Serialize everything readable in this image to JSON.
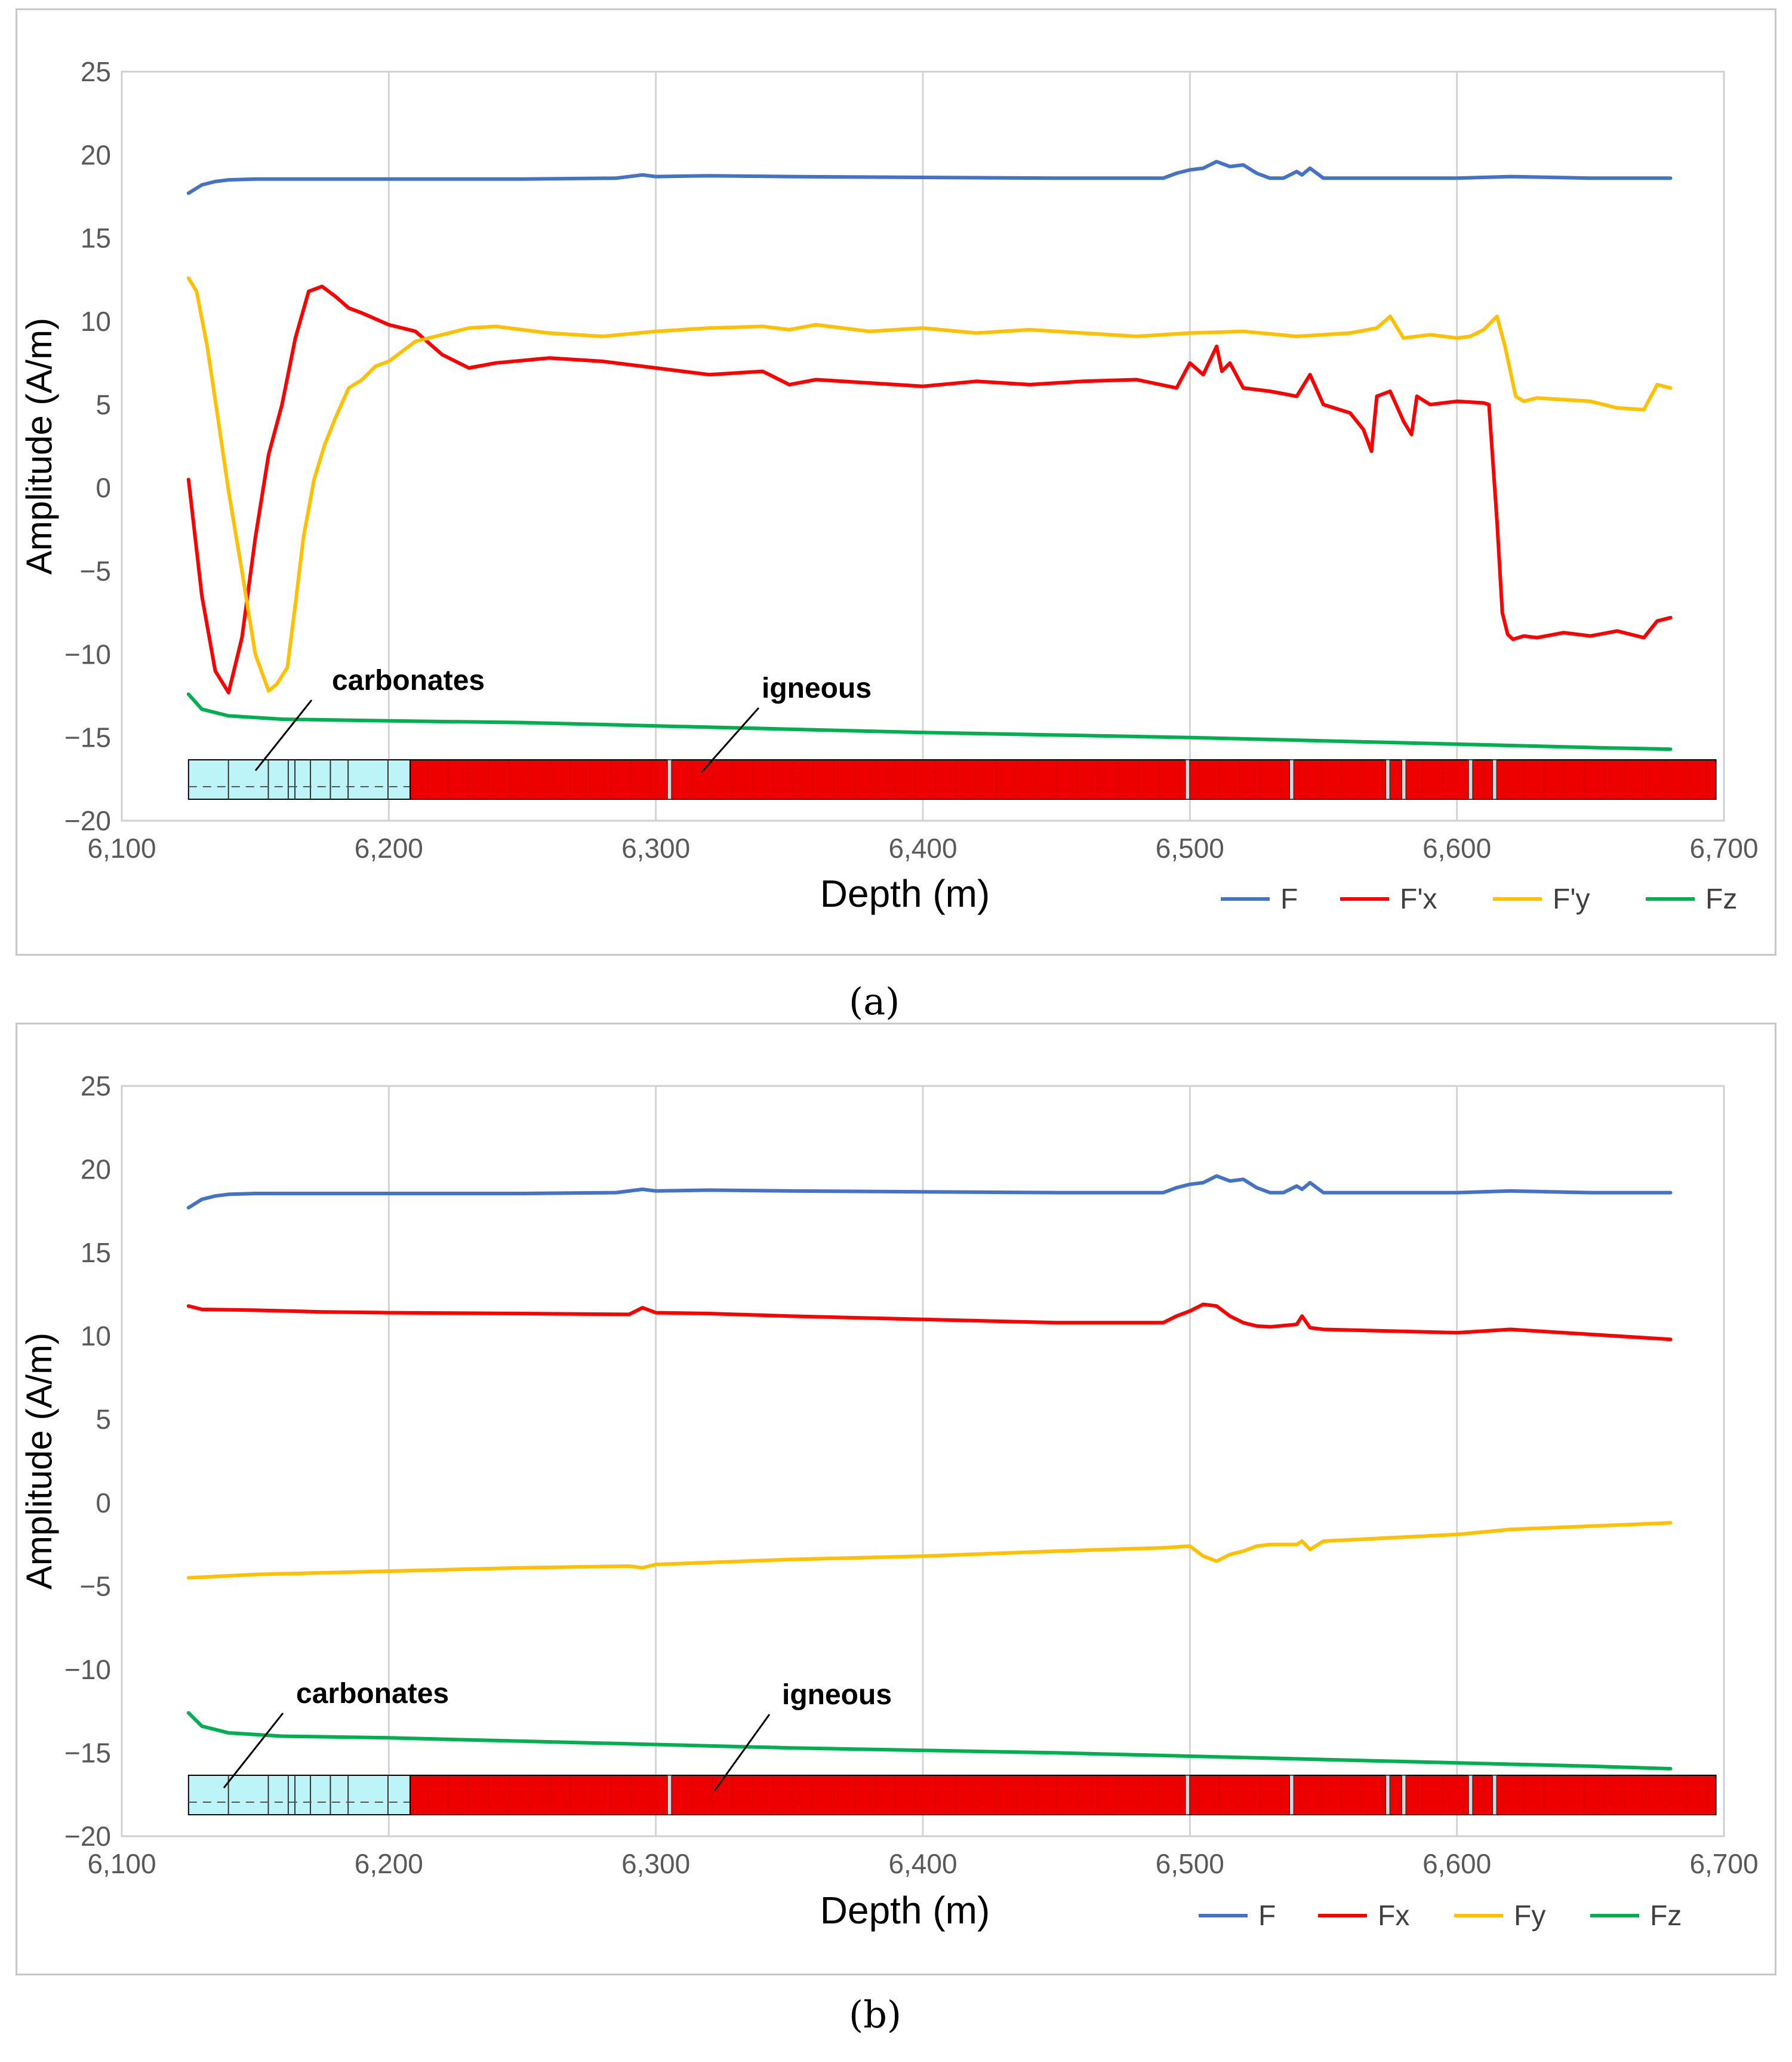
{
  "chart_data": [
    {
      "type": "line",
      "panel_label": "(a)",
      "title": "",
      "xlabel": "Depth (m)",
      "ylabel": "Amplitude (A/m)",
      "xlim": [
        6100,
        6700
      ],
      "ylim": [
        -20,
        25
      ],
      "x_ticks": [
        6100,
        6200,
        6300,
        6400,
        6500,
        6600,
        6700
      ],
      "x_tick_labels": [
        "6,100",
        "6,200",
        "6,300",
        "6,400",
        "6,500",
        "6,600",
        "6,700"
      ],
      "y_ticks": [
        -20,
        -15,
        -10,
        -5,
        0,
        5,
        10,
        15,
        20,
        25
      ],
      "y_tick_labels": [
        "−20",
        "−15",
        "−10",
        "−5",
        "0",
        "5",
        "10",
        "15",
        "20",
        "25"
      ],
      "grid": "vertical",
      "legend_position": "bottom-right",
      "series": [
        {
          "name": "F",
          "color": "#4472C4",
          "x": [
            6125,
            6130,
            6135,
            6140,
            6150,
            6175,
            6200,
            6250,
            6285,
            6295,
            6300,
            6320,
            6350,
            6400,
            6450,
            6490,
            6495,
            6500,
            6505,
            6510,
            6515,
            6520,
            6525,
            6530,
            6535,
            6540,
            6542,
            6545,
            6550,
            6600,
            6620,
            6650,
            6680
          ],
          "y": [
            17.7,
            18.2,
            18.4,
            18.5,
            18.55,
            18.55,
            18.55,
            18.55,
            18.6,
            18.8,
            18.7,
            18.75,
            18.7,
            18.65,
            18.6,
            18.6,
            18.9,
            19.1,
            19.2,
            19.6,
            19.3,
            19.4,
            18.9,
            18.6,
            18.6,
            19.0,
            18.8,
            19.2,
            18.6,
            18.6,
            18.7,
            18.6,
            18.6
          ]
        },
        {
          "name": "F'x",
          "color": "#FF0000",
          "x": [
            6125,
            6130,
            6135,
            6140,
            6145,
            6150,
            6155,
            6160,
            6165,
            6170,
            6175,
            6180,
            6185,
            6190,
            6200,
            6210,
            6220,
            6230,
            6240,
            6260,
            6280,
            6300,
            6320,
            6340,
            6350,
            6360,
            6380,
            6400,
            6420,
            6440,
            6460,
            6480,
            6495,
            6500,
            6505,
            6510,
            6512,
            6515,
            6520,
            6530,
            6540,
            6545,
            6550,
            6560,
            6565,
            6568,
            6570,
            6575,
            6580,
            6583,
            6585,
            6590,
            6600,
            6610,
            6612,
            6615,
            6617,
            6619,
            6621,
            6625,
            6630,
            6640,
            6650,
            6660,
            6670,
            6675,
            6680
          ],
          "y": [
            0.5,
            -6.5,
            -11,
            -12.3,
            -9,
            -3,
            2,
            5,
            9,
            11.8,
            12.1,
            11.5,
            10.8,
            10.5,
            9.8,
            9.4,
            8.0,
            7.2,
            7.5,
            7.8,
            7.6,
            7.2,
            6.8,
            7.0,
            6.2,
            6.5,
            6.3,
            6.1,
            6.4,
            6.2,
            6.4,
            6.5,
            6.0,
            7.5,
            6.8,
            8.5,
            7.0,
            7.5,
            6.0,
            5.8,
            5.5,
            6.8,
            5.0,
            4.5,
            3.5,
            2.2,
            5.5,
            5.8,
            4.0,
            3.2,
            5.5,
            5.0,
            5.2,
            5.1,
            5.0,
            -2,
            -7.5,
            -8.8,
            -9.1,
            -8.9,
            -9.0,
            -8.7,
            -8.9,
            -8.6,
            -9.0,
            -8.0,
            -7.8
          ]
        },
        {
          "name": "F'y",
          "color": "#FFC000",
          "x": [
            6125,
            6128,
            6132,
            6136,
            6140,
            6145,
            6150,
            6155,
            6158,
            6162,
            6165,
            6168,
            6172,
            6176,
            6180,
            6185,
            6190,
            6195,
            6200,
            6210,
            6220,
            6230,
            6240,
            6260,
            6280,
            6300,
            6320,
            6340,
            6350,
            6360,
            6380,
            6400,
            6420,
            6440,
            6460,
            6480,
            6500,
            6520,
            6540,
            6560,
            6570,
            6575,
            6580,
            6590,
            6600,
            6605,
            6610,
            6615,
            6618,
            6622,
            6625,
            6630,
            6640,
            6650,
            6660,
            6670,
            6675,
            6680
          ],
          "y": [
            12.6,
            11.8,
            8.5,
            4.2,
            -0.2,
            -5,
            -10,
            -12.2,
            -11.8,
            -10.8,
            -7,
            -3,
            0.5,
            2.6,
            4.2,
            6.0,
            6.5,
            7.3,
            7.6,
            8.8,
            9.2,
            9.6,
            9.7,
            9.3,
            9.1,
            9.4,
            9.6,
            9.7,
            9.5,
            9.8,
            9.4,
            9.6,
            9.3,
            9.5,
            9.3,
            9.1,
            9.3,
            9.4,
            9.1,
            9.3,
            9.6,
            10.3,
            9.0,
            9.2,
            9.0,
            9.1,
            9.5,
            10.3,
            8.5,
            5.5,
            5.2,
            5.4,
            5.3,
            5.2,
            4.8,
            4.7,
            6.2,
            6.0
          ]
        },
        {
          "name": "Fz",
          "color": "#00B050",
          "x": [
            6125,
            6130,
            6140,
            6160,
            6200,
            6250,
            6300,
            6350,
            6400,
            6450,
            6500,
            6550,
            6600,
            6650,
            6680
          ],
          "y": [
            -12.4,
            -13.3,
            -13.7,
            -13.9,
            -14.0,
            -14.1,
            -14.3,
            -14.5,
            -14.7,
            -14.85,
            -15.0,
            -15.2,
            -15.4,
            -15.6,
            -15.7
          ]
        }
      ],
      "legend": [
        "F",
        "F'x",
        "F'y",
        "Fz"
      ],
      "annotations": [
        "carbonates",
        "igneous"
      ],
      "lithology": [
        {
          "name": "carbonates",
          "from": 6125,
          "to": 6208,
          "color": "#BDF4F8"
        },
        {
          "name": "igneous",
          "from": 6208,
          "to": 6697,
          "color": "#EE0000"
        }
      ],
      "lithology_separators": [
        6305,
        6499,
        6538,
        6574,
        6580,
        6605,
        6614
      ]
    },
    {
      "type": "line",
      "panel_label": "(b)",
      "title": "",
      "xlabel": "Depth (m)",
      "ylabel": "Amplitude (A/m)",
      "xlim": [
        6100,
        6700
      ],
      "ylim": [
        -20,
        25
      ],
      "x_ticks": [
        6100,
        6200,
        6300,
        6400,
        6500,
        6600,
        6700
      ],
      "x_tick_labels": [
        "6,100",
        "6,200",
        "6,300",
        "6,400",
        "6,500",
        "6,600",
        "6,700"
      ],
      "y_ticks": [
        -20,
        -15,
        -10,
        -5,
        0,
        5,
        10,
        15,
        20,
        25
      ],
      "y_tick_labels": [
        "−20",
        "−15",
        "−10",
        "−5",
        "0",
        "5",
        "10",
        "15",
        "20",
        "25"
      ],
      "grid": "vertical",
      "legend_position": "bottom-right",
      "series": [
        {
          "name": "F",
          "color": "#4472C4",
          "x": [
            6125,
            6130,
            6135,
            6140,
            6150,
            6175,
            6200,
            6250,
            6285,
            6295,
            6300,
            6320,
            6350,
            6400,
            6450,
            6490,
            6495,
            6500,
            6505,
            6510,
            6515,
            6520,
            6525,
            6530,
            6535,
            6540,
            6542,
            6545,
            6550,
            6600,
            6620,
            6650,
            6680
          ],
          "y": [
            17.7,
            18.2,
            18.4,
            18.5,
            18.55,
            18.55,
            18.55,
            18.55,
            18.6,
            18.8,
            18.7,
            18.75,
            18.7,
            18.65,
            18.6,
            18.6,
            18.9,
            19.1,
            19.2,
            19.6,
            19.3,
            19.4,
            18.9,
            18.6,
            18.6,
            19.0,
            18.8,
            19.2,
            18.6,
            18.6,
            18.7,
            18.6,
            18.6
          ]
        },
        {
          "name": "Fx",
          "color": "#FF0000",
          "x": [
            6125,
            6130,
            6150,
            6175,
            6200,
            6250,
            6290,
            6295,
            6300,
            6320,
            6350,
            6400,
            6450,
            6490,
            6495,
            6500,
            6505,
            6510,
            6515,
            6520,
            6525,
            6530,
            6540,
            6542,
            6545,
            6550,
            6600,
            6620,
            6650,
            6680
          ],
          "y": [
            11.8,
            11.6,
            11.55,
            11.45,
            11.4,
            11.35,
            11.3,
            11.7,
            11.4,
            11.35,
            11.2,
            11.0,
            10.8,
            10.8,
            11.2,
            11.5,
            11.9,
            11.8,
            11.2,
            10.8,
            10.6,
            10.55,
            10.7,
            11.2,
            10.5,
            10.4,
            10.2,
            10.4,
            10.1,
            9.8
          ]
        },
        {
          "name": "Fy",
          "color": "#FFC000",
          "x": [
            6125,
            6150,
            6200,
            6250,
            6290,
            6295,
            6300,
            6350,
            6400,
            6450,
            6490,
            6500,
            6505,
            6510,
            6515,
            6520,
            6525,
            6530,
            6540,
            6542,
            6545,
            6550,
            6600,
            6620,
            6650,
            6680
          ],
          "y": [
            -4.5,
            -4.3,
            -4.1,
            -3.9,
            -3.8,
            -3.9,
            -3.7,
            -3.4,
            -3.2,
            -2.9,
            -2.7,
            -2.6,
            -3.2,
            -3.5,
            -3.1,
            -2.9,
            -2.6,
            -2.5,
            -2.5,
            -2.3,
            -2.8,
            -2.3,
            -1.9,
            -1.6,
            -1.4,
            -1.2
          ]
        },
        {
          "name": "Fz",
          "color": "#00B050",
          "x": [
            6125,
            6130,
            6140,
            6160,
            6200,
            6250,
            6300,
            6350,
            6400,
            6450,
            6500,
            6550,
            6600,
            6650,
            6680
          ],
          "y": [
            -12.6,
            -13.4,
            -13.8,
            -14.0,
            -14.1,
            -14.3,
            -14.5,
            -14.7,
            -14.85,
            -15.0,
            -15.2,
            -15.4,
            -15.6,
            -15.8,
            -15.95
          ]
        }
      ],
      "legend": [
        "F",
        "Fx",
        "Fy",
        "Fz"
      ],
      "annotations": [
        "carbonates",
        "igneous"
      ],
      "lithology": [
        {
          "name": "carbonates",
          "from": 6125,
          "to": 6208,
          "color": "#BDF4F8"
        },
        {
          "name": "igneous",
          "from": 6208,
          "to": 6697,
          "color": "#EE0000"
        }
      ],
      "lithology_separators": [
        6305,
        6499,
        6538,
        6574,
        6580,
        6605,
        6614
      ]
    }
  ]
}
